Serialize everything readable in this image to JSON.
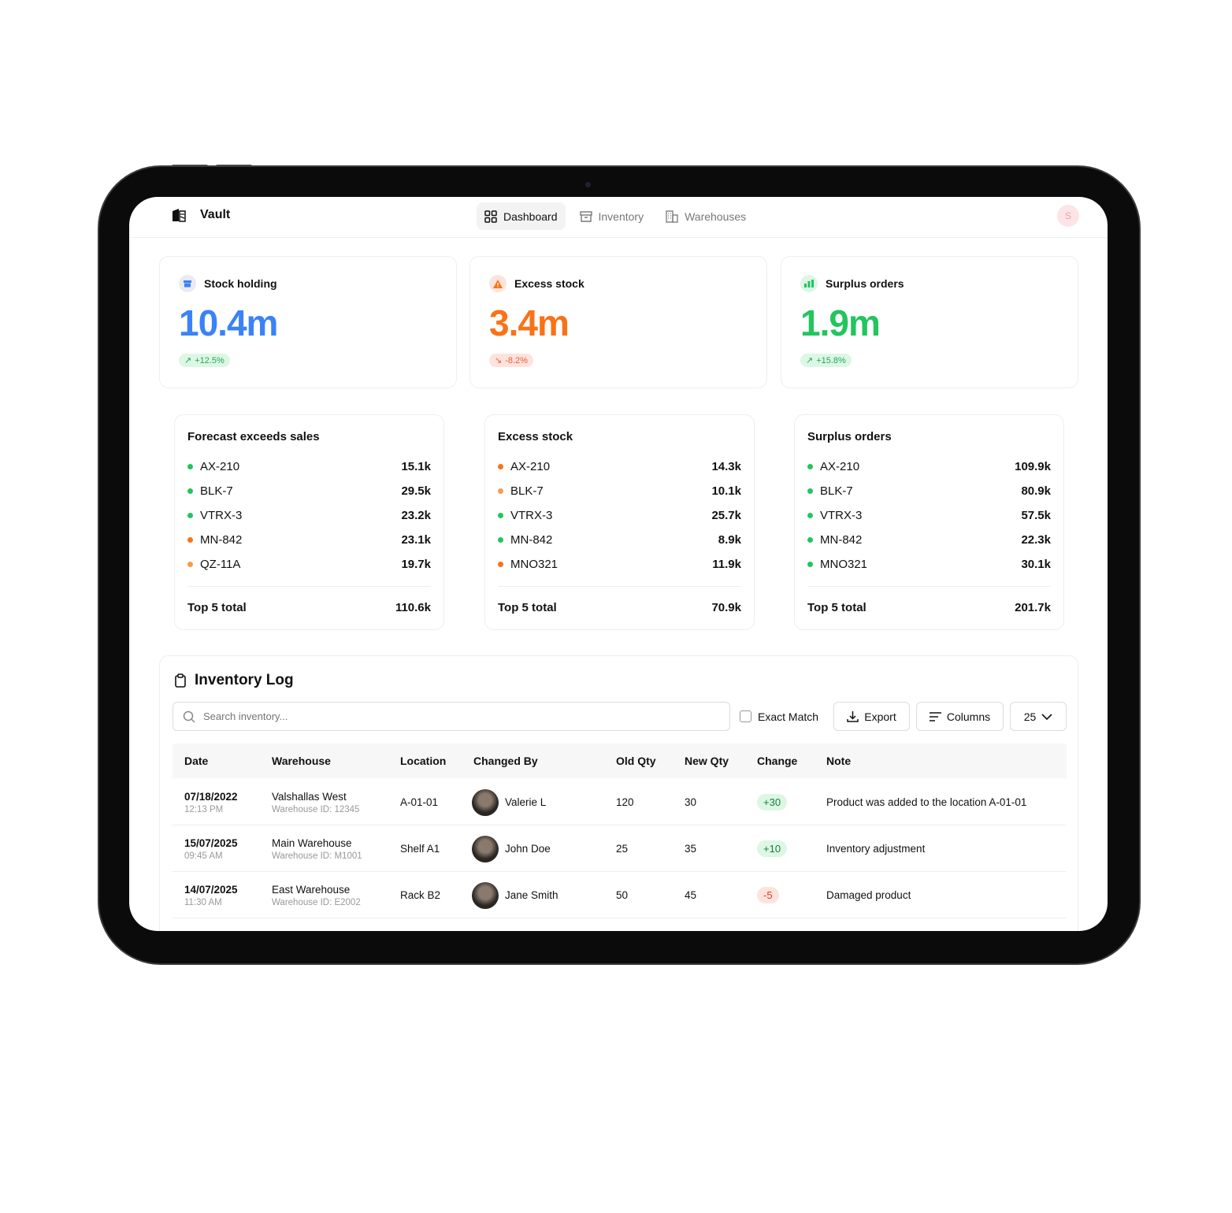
{
  "app": {
    "name": "Vault"
  },
  "nav": [
    {
      "label": "Dashboard",
      "icon": "grid-icon",
      "active": true
    },
    {
      "label": "Inventory",
      "icon": "archive-icon"
    },
    {
      "label": "Warehouses",
      "icon": "building-icon"
    }
  ],
  "user": {
    "initial": "S"
  },
  "kpis": [
    {
      "title": "Stock holding",
      "value": "10.4m",
      "change": "+12.5%",
      "trend": "up",
      "color": "#3b82f6",
      "icon": "archive-icon"
    },
    {
      "title": "Excess stock",
      "value": "3.4m",
      "change": "-8.2%",
      "trend": "down",
      "color": "#f97316",
      "icon": "warning-icon"
    },
    {
      "title": "Surplus orders",
      "value": "1.9m",
      "change": "+15.8%",
      "trend": "up",
      "color": "#22c55e",
      "icon": "bar-chart-icon"
    }
  ],
  "lists": [
    {
      "title": "Forecast exceeds sales",
      "items": [
        {
          "name": "AX-210",
          "value": "15.1k",
          "status": "green"
        },
        {
          "name": "BLK-7",
          "value": "29.5k",
          "status": "green"
        },
        {
          "name": "VTRX-3",
          "value": "23.2k",
          "status": "green"
        },
        {
          "name": "MN-842",
          "value": "23.1k",
          "status": "orange"
        },
        {
          "name": "QZ-11A",
          "value": "19.7k",
          "status": "light-orange"
        }
      ],
      "total_label": "Top 5 total",
      "total": "110.6k"
    },
    {
      "title": "Excess stock",
      "items": [
        {
          "name": "AX-210",
          "value": "14.3k",
          "status": "orange"
        },
        {
          "name": "BLK-7",
          "value": "10.1k",
          "status": "light-orange"
        },
        {
          "name": "VTRX-3",
          "value": "25.7k",
          "status": "green"
        },
        {
          "name": "MN-842",
          "value": "8.9k",
          "status": "green"
        },
        {
          "name": "MNO321",
          "value": "11.9k",
          "status": "orange"
        }
      ],
      "total_label": "Top 5 total",
      "total": "70.9k"
    },
    {
      "title": "Surplus orders",
      "items": [
        {
          "name": "AX-210",
          "value": "109.9k",
          "status": "green"
        },
        {
          "name": "BLK-7",
          "value": "80.9k",
          "status": "green"
        },
        {
          "name": "VTRX-3",
          "value": "57.5k",
          "status": "green"
        },
        {
          "name": "MN-842",
          "value": "22.3k",
          "status": "green"
        },
        {
          "name": "MNO321",
          "value": "30.1k",
          "status": "green"
        }
      ],
      "total_label": "Top 5 total",
      "total": "201.7k"
    }
  ],
  "status_colors": {
    "green": "#22c55e",
    "orange": "#f97316",
    "light-orange": "#fb9a4b"
  },
  "log": {
    "title": "Inventory Log",
    "search_placeholder": "Search inventory...",
    "exact_match": "Exact Match",
    "export": "Export",
    "columns": "Columns",
    "page_size": "25",
    "headers": [
      "Date",
      "Warehouse",
      "Location",
      "Changed By",
      "Old Qty",
      "New Qty",
      "Change",
      "Note"
    ],
    "rows": [
      {
        "date": "07/18/2022",
        "time": "12:13 PM",
        "warehouse": "Valshallas West",
        "wid": "Warehouse ID: 12345",
        "location": "A-01-01",
        "by": "Valerie L",
        "old": "120",
        "new": "30",
        "change": "+30",
        "note": "Product was added to the location A-01-01"
      },
      {
        "date": "15/07/2025",
        "time": "09:45 AM",
        "warehouse": "Main Warehouse",
        "wid": "Warehouse ID: M1001",
        "location": "Shelf A1",
        "by": "John Doe",
        "old": "25",
        "new": "35",
        "change": "+10",
        "note": "Inventory adjustment"
      },
      {
        "date": "14/07/2025",
        "time": "11:30 AM",
        "warehouse": "East Warehouse",
        "wid": "Warehouse ID: E2002",
        "location": "Rack B2",
        "by": "Jane Smith",
        "old": "50",
        "new": "45",
        "change": "-5",
        "note": "Damaged product"
      }
    ]
  }
}
